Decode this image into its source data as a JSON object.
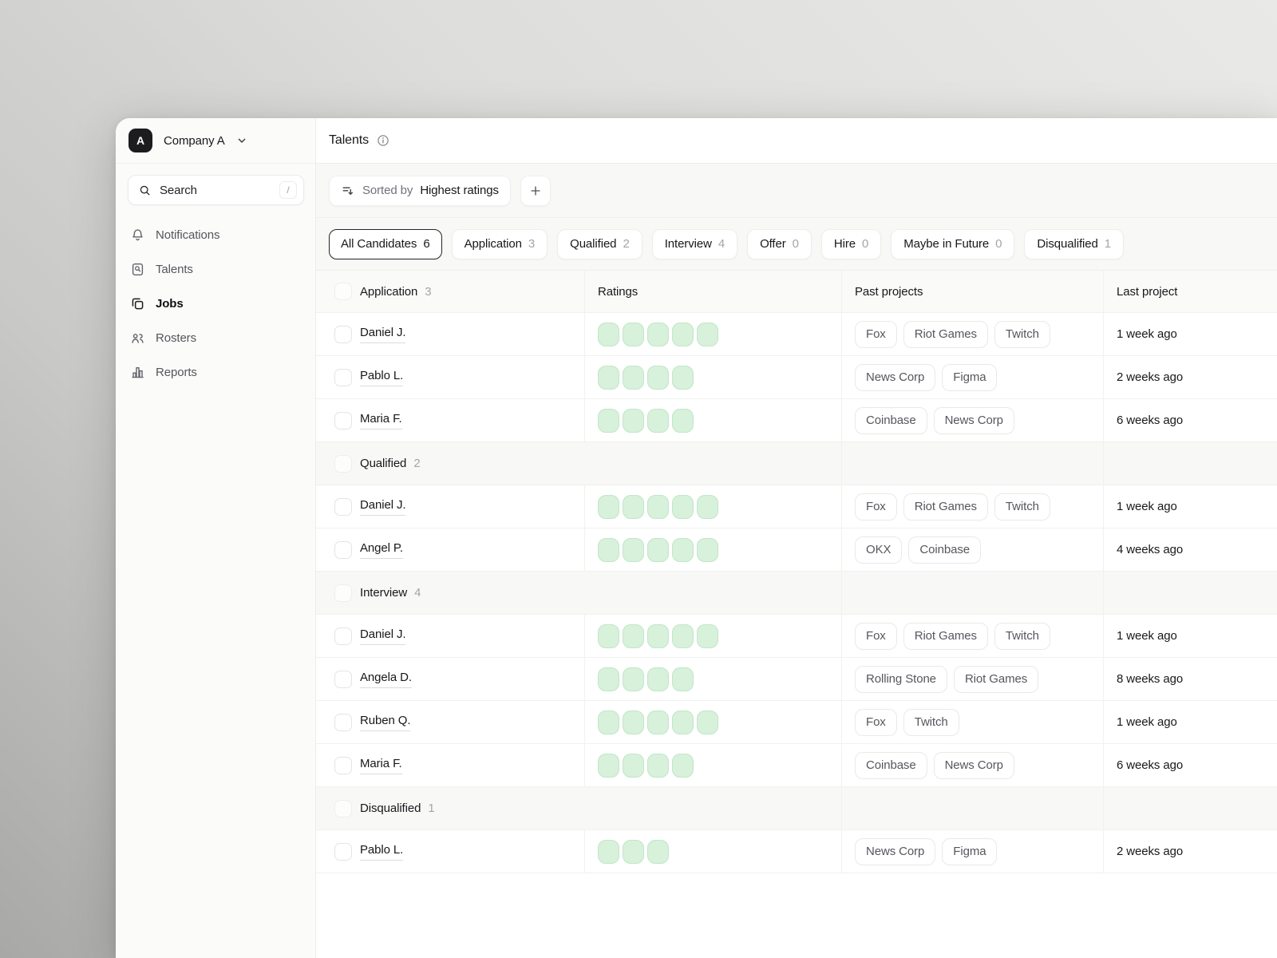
{
  "colors": {
    "rating_fill": "#d7f1da",
    "rating_border": "#c2e6c9"
  },
  "icons": {
    "company_dropdown": "chevron-down",
    "sidebar_search": "magnifier",
    "header_info": "info-circle",
    "toolbar_sort": "sort-descending",
    "toolbar_add": "plus"
  },
  "window": {
    "company_name": "Company A",
    "company_avatar_letter": "A"
  },
  "sidebar": {
    "search": {
      "placeholder": "Search",
      "shortcut_key": "/"
    },
    "items": [
      {
        "label": "Notifications",
        "icon": "bell",
        "active": false
      },
      {
        "label": "Talents",
        "icon": "talent-search",
        "active": false
      },
      {
        "label": "Jobs",
        "icon": "jobs",
        "active": true
      },
      {
        "label": "Rosters",
        "icon": "rosters",
        "active": false
      },
      {
        "label": "Reports",
        "icon": "reports",
        "active": false
      }
    ]
  },
  "header": {
    "title": "Talents"
  },
  "toolbar": {
    "sorted_by_label": "Sorted by",
    "sorted_by_value": "Highest ratings"
  },
  "filters": [
    {
      "label": "All Candidates",
      "count": "6",
      "selected": true
    },
    {
      "label": "Application",
      "count": "3",
      "selected": false
    },
    {
      "label": "Qualified",
      "count": "2",
      "selected": false
    },
    {
      "label": "Interview",
      "count": "4",
      "selected": false
    },
    {
      "label": "Offer",
      "count": "0",
      "selected": false
    },
    {
      "label": "Hire",
      "count": "0",
      "selected": false
    },
    {
      "label": "Maybe in Future",
      "count": "0",
      "selected": false
    },
    {
      "label": "Disqualified",
      "count": "1",
      "selected": false
    }
  ],
  "table": {
    "header_group": {
      "label": "Application",
      "count": "3"
    },
    "columns": {
      "ratings": "Ratings",
      "past_projects": "Past projects",
      "last_project": "Last project"
    },
    "sections": [
      {
        "rows": [
          {
            "name": "Daniel J.",
            "rating": 5,
            "past_projects": [
              "Fox",
              "Riot Games",
              "Twitch"
            ],
            "last_project": "1 week ago"
          },
          {
            "name": "Pablo L.",
            "rating": 4,
            "past_projects": [
              "News Corp",
              "Figma"
            ],
            "last_project": "2 weeks ago"
          },
          {
            "name": "Maria F.",
            "rating": 4,
            "past_projects": [
              "Coinbase",
              "News Corp"
            ],
            "last_project": "6 weeks ago"
          }
        ]
      },
      {
        "group": {
          "label": "Qualified",
          "count": "2"
        },
        "rows": [
          {
            "name": "Daniel J.",
            "rating": 5,
            "past_projects": [
              "Fox",
              "Riot Games",
              "Twitch"
            ],
            "last_project": "1 week ago"
          },
          {
            "name": "Angel P.",
            "rating": 5,
            "past_projects": [
              "OKX",
              "Coinbase"
            ],
            "last_project": "4 weeks ago"
          }
        ]
      },
      {
        "group": {
          "label": "Interview",
          "count": "4"
        },
        "rows": [
          {
            "name": "Daniel J.",
            "rating": 5,
            "past_projects": [
              "Fox",
              "Riot Games",
              "Twitch"
            ],
            "last_project": "1 week ago"
          },
          {
            "name": "Angela D.",
            "rating": 4,
            "past_projects": [
              "Rolling Stone",
              "Riot Games"
            ],
            "last_project": "8 weeks ago"
          },
          {
            "name": "Ruben Q.",
            "rating": 5,
            "past_projects": [
              "Fox",
              "Twitch"
            ],
            "last_project": "1 week ago"
          },
          {
            "name": "Maria F.",
            "rating": 4,
            "past_projects": [
              "Coinbase",
              "News Corp"
            ],
            "last_project": "6 weeks ago"
          }
        ]
      },
      {
        "group": {
          "label": "Disqualified",
          "count": "1"
        },
        "rows": [
          {
            "name": "Pablo L.",
            "rating": 3,
            "past_projects": [
              "News Corp",
              "Figma"
            ],
            "last_project": "2 weeks ago"
          }
        ]
      }
    ]
  }
}
